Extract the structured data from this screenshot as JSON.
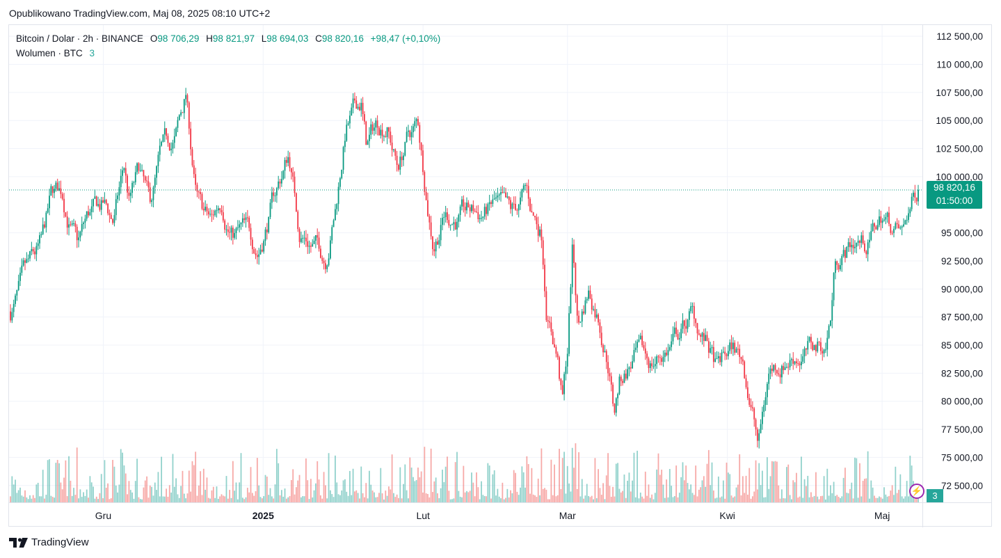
{
  "published": "Opublikowano TradingView.com, Maj 08, 2025 08:10 UTC+2",
  "brand": "TradingView",
  "legend": {
    "symbol": "Bitcoin / Dolar · 2h · BINANCE",
    "o_label": "O",
    "o_value": "98 706,29",
    "h_label": "H",
    "h_value": "98 821,97",
    "l_label": "L",
    "l_value": "98 694,03",
    "c_label": "C",
    "c_value": "98 820,16",
    "change": "+98,47 (+0,10%)",
    "volume_label": "Wolumen · BTC",
    "volume_value": "3"
  },
  "price_label": {
    "price": "98 820,16",
    "countdown": "01:50:00"
  },
  "volume_badge": "3",
  "colors": {
    "up": "#089981",
    "down": "#f23645",
    "grid": "#f0f3fa",
    "text": "#131722"
  },
  "chart_data": {
    "type": "candlestick",
    "title": "Bitcoin / Dolar · 2h · BINANCE",
    "y_axis": {
      "min": 71000,
      "max": 113500,
      "position": "right",
      "ticks": [
        72500,
        75000,
        77500,
        80000,
        82500,
        85000,
        87500,
        90000,
        92500,
        95000,
        100000,
        102500,
        105000,
        107500,
        110000,
        112500
      ],
      "tick_labels": [
        "72 500,00",
        "75 000,00",
        "77 500,00",
        "80 000,00",
        "82 500,00",
        "85 000,00",
        "87 500,00",
        "90 000,00",
        "92 500,00",
        "95 000,00",
        "100 000,00",
        "102 500,00",
        "105 000,00",
        "107 500,00",
        "110 000,00",
        "112 500,00"
      ]
    },
    "x_axis": {
      "start": "2024-11-13",
      "end": "2025-05-08",
      "ticks": [
        {
          "date": "2024-12-01",
          "label": "Gru",
          "bold": false
        },
        {
          "date": "2025-01-01",
          "label": "2025",
          "bold": true
        },
        {
          "date": "2025-02-01",
          "label": "Lut",
          "bold": false
        },
        {
          "date": "2025-03-01",
          "label": "Mar",
          "bold": false
        },
        {
          "date": "2025-04-01",
          "label": "Kwi",
          "bold": false
        },
        {
          "date": "2025-05-01",
          "label": "Maj",
          "bold": false
        }
      ]
    },
    "last_price": 98820.16,
    "grid": true,
    "price_path": [
      [
        "2024-11-13",
        88000
      ],
      [
        "2024-11-16",
        90500
      ],
      [
        "2024-11-19",
        93000
      ],
      [
        "2024-11-21",
        97500
      ],
      [
        "2024-11-23",
        98300
      ],
      [
        "2024-11-26",
        93500
      ],
      [
        "2024-11-28",
        96000
      ],
      [
        "2024-12-01",
        97000
      ],
      [
        "2024-12-03",
        95800
      ],
      [
        "2024-12-05",
        100500
      ],
      [
        "2024-12-06",
        97500
      ],
      [
        "2024-12-08",
        100000
      ],
      [
        "2024-12-10",
        96500
      ],
      [
        "2024-12-12",
        101000
      ],
      [
        "2024-12-15",
        103000
      ],
      [
        "2024-12-17",
        107000
      ],
      [
        "2024-12-19",
        98000
      ],
      [
        "2024-12-20",
        96500
      ],
      [
        "2024-12-22",
        95500
      ],
      [
        "2024-12-24",
        98000
      ],
      [
        "2024-12-26",
        95200
      ],
      [
        "2024-12-28",
        95000
      ],
      [
        "2024-12-31",
        93500
      ],
      [
        "2025-01-03",
        98000
      ],
      [
        "2025-01-06",
        102000
      ],
      [
        "2025-01-08",
        95500
      ],
      [
        "2025-01-10",
        94500
      ],
      [
        "2025-01-13",
        93000
      ],
      [
        "2025-01-15",
        97500
      ],
      [
        "2025-01-17",
        104500
      ],
      [
        "2025-01-20",
        106500
      ],
      [
        "2025-01-21",
        102500
      ],
      [
        "2025-01-23",
        104500
      ],
      [
        "2025-01-25",
        105000
      ],
      [
        "2025-01-27",
        101000
      ],
      [
        "2025-01-29",
        103500
      ],
      [
        "2025-01-31",
        104500
      ],
      [
        "2025-02-02",
        97500
      ],
      [
        "2025-02-03",
        94500
      ],
      [
        "2025-02-05",
        97000
      ],
      [
        "2025-02-08",
        96500
      ],
      [
        "2025-02-12",
        96500
      ],
      [
        "2025-02-15",
        97300
      ],
      [
        "2025-02-18",
        95500
      ],
      [
        "2025-02-21",
        98000
      ],
      [
        "2025-02-22",
        96500
      ],
      [
        "2025-02-24",
        95000
      ],
      [
        "2025-02-25",
        88500
      ],
      [
        "2025-02-27",
        84500
      ],
      [
        "2025-02-28",
        80000
      ],
      [
        "2025-03-01",
        84500
      ],
      [
        "2025-03-02",
        94000
      ],
      [
        "2025-03-03",
        86500
      ],
      [
        "2025-03-05",
        90000
      ],
      [
        "2025-03-07",
        88000
      ],
      [
        "2025-03-09",
        84000
      ],
      [
        "2025-03-10",
        79500
      ],
      [
        "2025-03-11",
        82000
      ],
      [
        "2025-03-14",
        84000
      ],
      [
        "2025-03-17",
        83000
      ],
      [
        "2025-03-20",
        84500
      ],
      [
        "2025-03-23",
        86000
      ],
      [
        "2025-03-25",
        87500
      ],
      [
        "2025-03-28",
        85000
      ],
      [
        "2025-03-30",
        82500
      ],
      [
        "2025-04-02",
        84500
      ],
      [
        "2025-04-04",
        83500
      ],
      [
        "2025-04-06",
        79000
      ],
      [
        "2025-04-07",
        76000
      ],
      [
        "2025-04-09",
        82500
      ],
      [
        "2025-04-11",
        83500
      ],
      [
        "2025-04-14",
        84500
      ],
      [
        "2025-04-17",
        84500
      ],
      [
        "2025-04-20",
        85000
      ],
      [
        "2025-04-21",
        87500
      ],
      [
        "2025-04-22",
        93000
      ],
      [
        "2025-04-24",
        93500
      ],
      [
        "2025-04-26",
        94500
      ],
      [
        "2025-04-28",
        94000
      ],
      [
        "2025-05-01",
        96500
      ],
      [
        "2025-05-03",
        95500
      ],
      [
        "2025-05-05",
        94500
      ],
      [
        "2025-05-06",
        96500
      ],
      [
        "2025-05-08",
        98820
      ]
    ]
  }
}
